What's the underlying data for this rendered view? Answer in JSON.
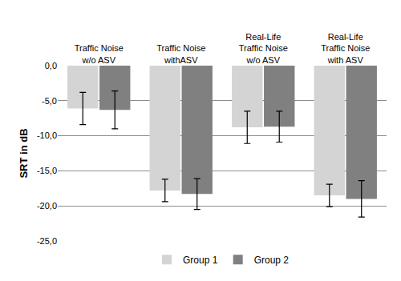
{
  "chart_data": {
    "type": "bar",
    "categories": [
      "Traffic Noise w/o ASV",
      "Traffic Noise withASV",
      "Real-Life Traffic Noise w/o ASV",
      "Real-Life Traffic Noise with ASV"
    ],
    "series": [
      {
        "name": "Group 1",
        "color": "#d4d4d4",
        "values": [
          -6.1,
          -17.8,
          -8.8,
          -18.5
        ],
        "error": [
          2.3,
          1.6,
          2.3,
          1.6
        ]
      },
      {
        "name": "Group 2",
        "color": "#808080",
        "values": [
          -6.3,
          -18.3,
          -8.7,
          -19.0
        ],
        "error": [
          2.7,
          2.2,
          2.2,
          2.6
        ]
      }
    ],
    "y_label": "SRT in dB",
    "ylim": [
      -25,
      0
    ],
    "yticks": [
      {
        "value": 0,
        "label": "0,0"
      },
      {
        "value": -5,
        "label": "-5,0"
      },
      {
        "value": -10,
        "label": "-10,0"
      },
      {
        "value": -15,
        "label": "-15,0"
      },
      {
        "value": -20,
        "label": "-20,0"
      },
      {
        "value": -25,
        "label": "-25,0"
      }
    ],
    "grid": true,
    "legend": "bottom"
  }
}
